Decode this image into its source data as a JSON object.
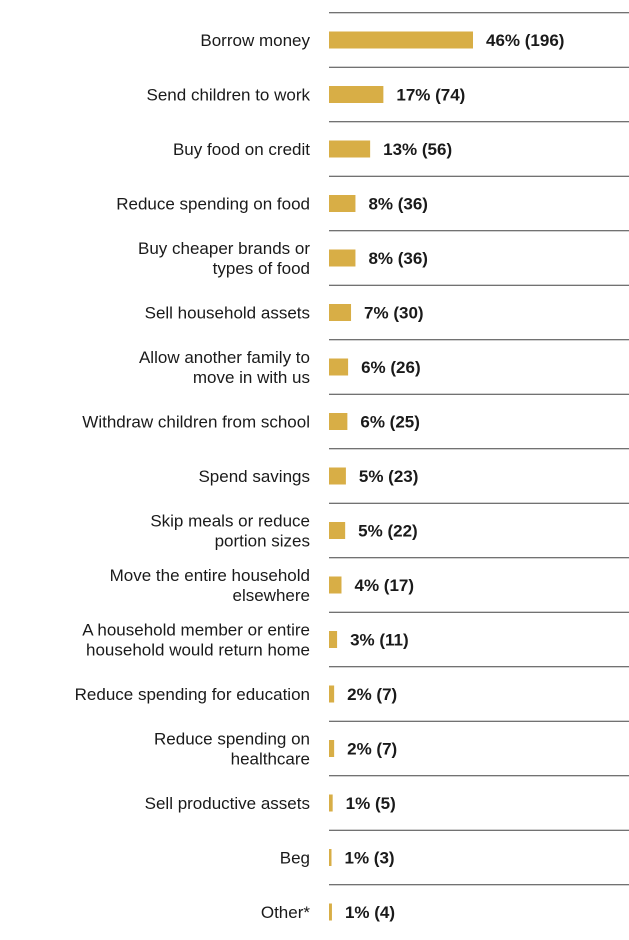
{
  "chart_data": {
    "type": "bar",
    "orientation": "horizontal",
    "bar_color": "#D8AE46",
    "categories": [
      [
        "Borrow money"
      ],
      [
        "Send children to work"
      ],
      [
        "Buy food on credit"
      ],
      [
        "Reduce spending on food"
      ],
      [
        "Buy cheaper brands or",
        "types of food"
      ],
      [
        "Sell household assets"
      ],
      [
        "Allow another family to",
        "move in with us"
      ],
      [
        "Withdraw children from school"
      ],
      [
        "Spend savings"
      ],
      [
        "Skip meals or reduce",
        "portion sizes"
      ],
      [
        "Move the entire household",
        "elsewhere"
      ],
      [
        "A household member or entire",
        "household would return home"
      ],
      [
        "Reduce spending for education"
      ],
      [
        "Reduce spending on",
        "healthcare"
      ],
      [
        "Sell productive assets"
      ],
      [
        "Beg"
      ],
      [
        "Other*"
      ]
    ],
    "counts": [
      196,
      74,
      56,
      36,
      36,
      30,
      26,
      25,
      23,
      22,
      17,
      11,
      7,
      7,
      5,
      3,
      4
    ],
    "value_labels": [
      "46% (196)",
      "17% (74)",
      "13% (56)",
      "8% (36)",
      "8% (36)",
      "7% (30)",
      "6% (26)",
      "6% (25)",
      "5% (23)",
      "5% (22)",
      "4% (17)",
      "3% (11)",
      "2% (7)",
      "2% (7)",
      "1% (5)",
      "1% (3)",
      "1% (4)"
    ]
  }
}
